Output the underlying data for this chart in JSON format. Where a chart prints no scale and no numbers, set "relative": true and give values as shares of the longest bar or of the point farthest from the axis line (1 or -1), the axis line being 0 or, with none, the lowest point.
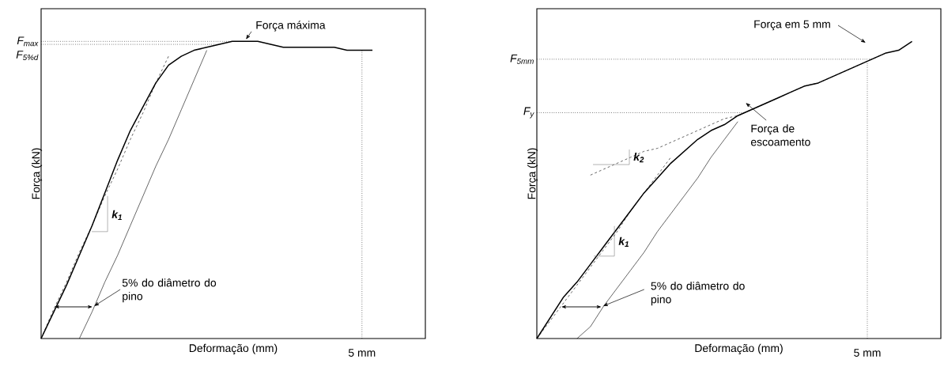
{
  "chart_data": [
    {
      "type": "line",
      "relative": true,
      "xlabel": "Deformação (mm)",
      "ylabel": "Força (kN)",
      "categories": [
        null,
        null,
        null,
        null,
        null,
        null,
        null,
        null,
        null,
        null,
        null,
        null,
        null,
        null,
        null,
        null,
        null,
        null,
        null,
        null,
        null,
        null,
        null,
        null,
        null,
        null,
        null,
        null,
        null,
        null,
        null
      ],
      "series": [
        {
          "color": "#000000",
          "line_style": "solid",
          "values": [
            0,
            0.09,
            0.18,
            0.28,
            0.38,
            0.49,
            0.6,
            0.7,
            0.78,
            0.86,
            0.92,
            0.95,
            0.97,
            0.98,
            0.99,
            1.0,
            1.0,
            1.0,
            0.99,
            0.98,
            0.98,
            0.98,
            0.98,
            0.98,
            0.97,
            0.97,
            0.97,
            null,
            null,
            null,
            null
          ]
        },
        {
          "color": "#000000",
          "line_style": "dashed",
          "values": [
            0,
            0.1,
            0.19,
            0.29,
            0.38,
            0.48,
            0.57,
            0.67,
            0.76,
            0.86,
            0.95,
            null,
            null,
            null,
            null,
            null,
            null,
            null,
            null,
            null,
            null,
            null,
            null,
            null,
            null,
            null,
            null,
            null,
            null,
            null,
            null
          ]
        },
        {
          "color": "#000000",
          "line_style": "solid",
          "values": [
            null,
            null,
            null,
            0,
            0.09,
            0.19,
            0.28,
            0.38,
            0.48,
            0.58,
            0.67,
            0.77,
            0.87,
            0.97,
            null,
            null,
            null,
            null,
            null,
            null,
            null,
            null,
            null,
            null,
            null,
            null,
            null,
            null,
            null,
            null,
            null
          ]
        }
      ],
      "ref_lines": [
        {
          "axis": "y",
          "value": 1.0,
          "label": "F$_{max}$",
          "line_style": "dotted"
        },
        {
          "axis": "y",
          "value": 0.99,
          "label": "F$_{5%d}$",
          "line_style": "dotted"
        }
      ],
      "annotations": [
        "Força máxima",
        "5% do diâmetro do pino",
        "k$_{1}$",
        "5 mm"
      ]
    },
    {
      "type": "line",
      "relative": true,
      "xlabel": "Deformação (mm)",
      "ylabel": "Força (kN)",
      "categories": [
        null,
        null,
        null,
        null,
        null,
        null,
        null,
        null,
        null,
        null,
        null,
        null,
        null,
        null,
        null,
        null,
        null,
        null,
        null,
        null,
        null,
        null,
        null,
        null,
        null,
        null,
        null,
        null,
        null,
        null,
        null
      ],
      "series": [
        {
          "color": "#000000",
          "line_style": "solid",
          "values": [
            0,
            0.07,
            0.14,
            0.19,
            0.25,
            0.31,
            0.37,
            0.43,
            0.49,
            0.54,
            0.59,
            0.63,
            0.67,
            0.7,
            0.72,
            0.75,
            0.77,
            0.79,
            0.81,
            0.83,
            0.85,
            0.86,
            0.88,
            0.9,
            0.92,
            0.94,
            0.96,
            0.97,
            1.0,
            null,
            null
          ]
        },
        {
          "color": "#000000",
          "line_style": "dashed",
          "values": [
            0,
            0.06,
            0.12,
            0.18,
            0.24,
            0.3,
            0.36,
            0.43,
            0.49,
            0.55,
            0.61,
            null,
            null,
            null,
            null,
            null,
            null,
            null,
            null,
            null,
            null,
            null,
            null,
            null,
            null,
            null,
            null,
            null,
            null,
            null,
            null
          ]
        },
        {
          "color": "#000000",
          "line_style": "dashed",
          "values": [
            null,
            null,
            null,
            null,
            0.55,
            0.57,
            0.59,
            0.61,
            0.63,
            0.64,
            0.66,
            0.68,
            0.7,
            0.72,
            0.74,
            0.75,
            0.77,
            0.79,
            0.81,
            0.83,
            0.85,
            0.86,
            0.88,
            0.9,
            0.92,
            0.94,
            0.96,
            null,
            null,
            null,
            null
          ]
        },
        {
          "color": "#000000",
          "line_style": "solid",
          "values": [
            null,
            null,
            null,
            0,
            0.04,
            0.11,
            0.17,
            0.23,
            0.29,
            0.36,
            0.42,
            0.48,
            0.54,
            0.61,
            0.67,
            0.73,
            null,
            null,
            null,
            null,
            null,
            null,
            null,
            null,
            null,
            null,
            null,
            null,
            null,
            null,
            null
          ]
        }
      ],
      "ref_lines": [
        {
          "axis": "y",
          "value": 0.94,
          "label": "F$_{5mm}$",
          "line_style": "dotted"
        },
        {
          "axis": "y",
          "value": 0.76,
          "label": "F$_{y}$",
          "line_style": "dotted"
        }
      ],
      "annotations": [
        "Força em 5 mm",
        "Força de escoamento",
        "5% do diâmetro do pino",
        "k$_{1}$",
        "k$_{2}$",
        "5 mm"
      ]
    }
  ]
}
